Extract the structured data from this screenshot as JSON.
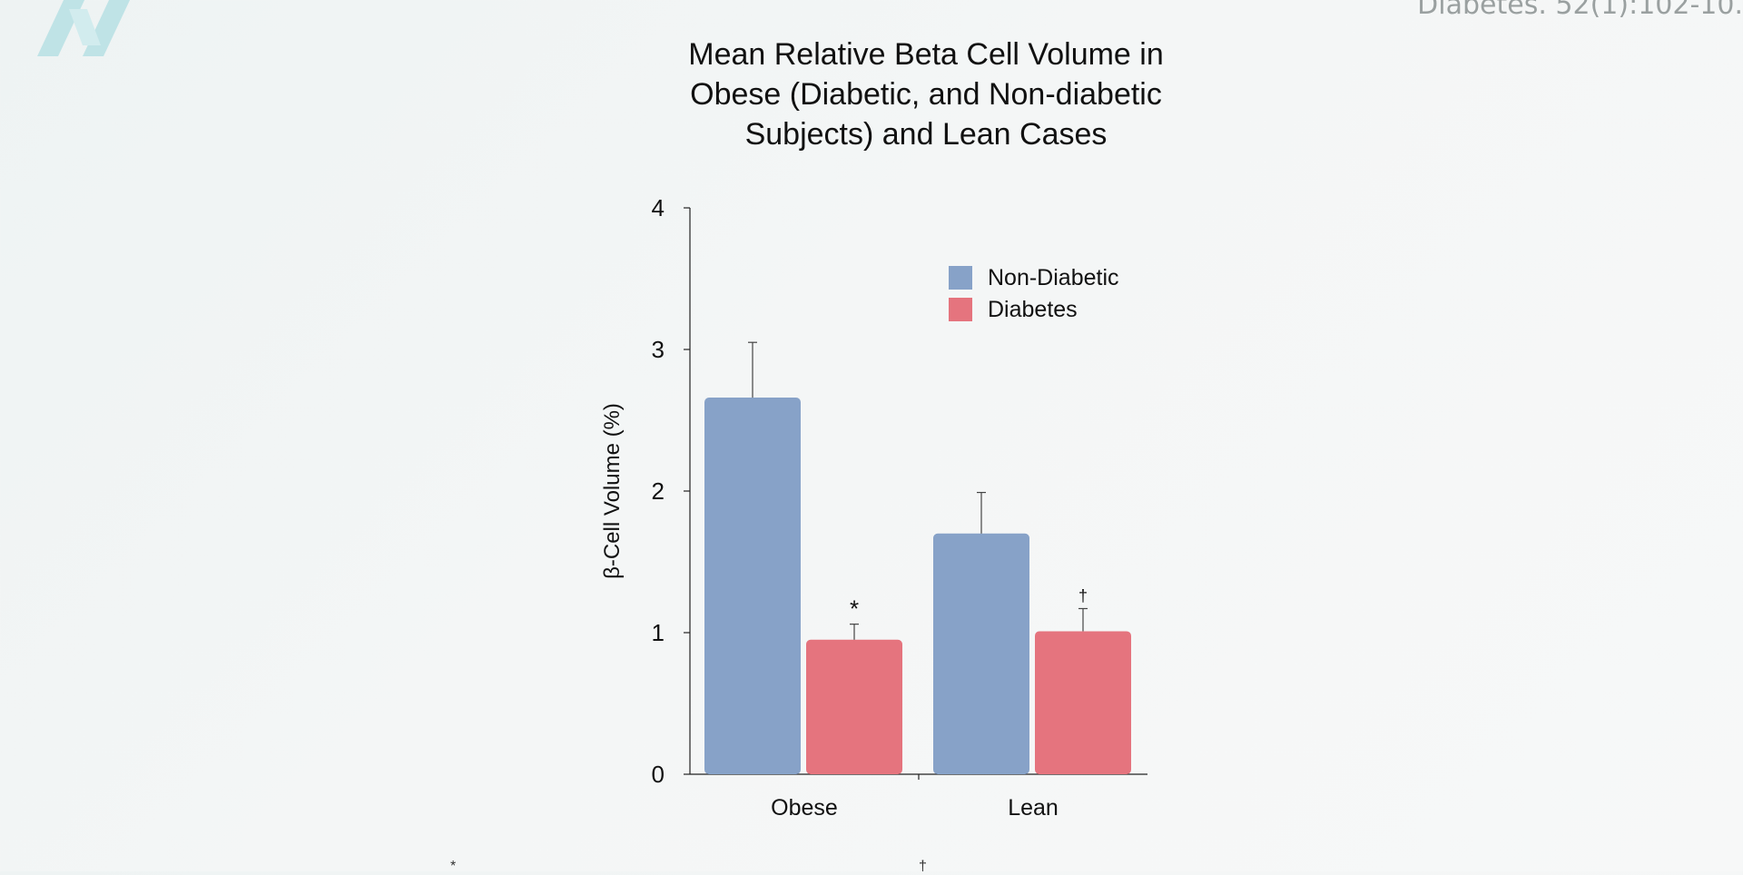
{
  "citation": "Diabetes. 52(1):102-10.",
  "chart_data": {
    "type": "bar",
    "title_lines": [
      "Mean Relative Beta Cell Volume in",
      "Obese (Diabetic, and Non-diabetic",
      "Subjects) and Lean Cases"
    ],
    "ylabel": "β-Cell Volume (%)",
    "xlabel": "",
    "categories": [
      "Obese",
      "Lean"
    ],
    "ylim": [
      0,
      4
    ],
    "yticks": [
      0,
      1,
      2,
      3,
      4
    ],
    "grid": false,
    "legend_position": "top-right",
    "series": [
      {
        "name": "Non-Diabetic",
        "color": "#87a2c8",
        "values": [
          2.66,
          1.7
        ],
        "errors": [
          0.39,
          0.29
        ],
        "markers": [
          "",
          ""
        ]
      },
      {
        "name": "Diabetes",
        "color": "#e5747e",
        "values": [
          0.95,
          1.01
        ],
        "errors": [
          0.11,
          0.16
        ],
        "markers": [
          "*",
          "†"
        ]
      }
    ]
  },
  "footnotes": [
    "*",
    "†"
  ]
}
